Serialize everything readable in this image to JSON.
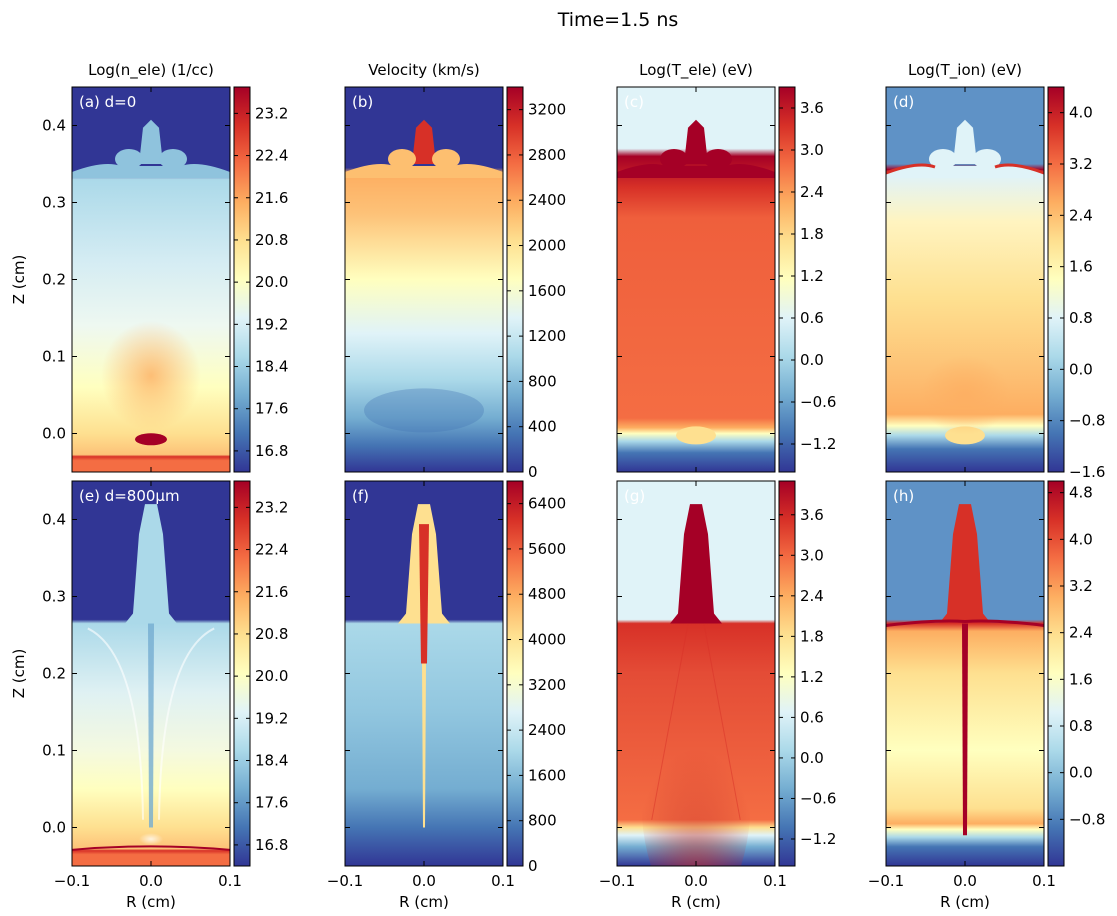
{
  "figure": {
    "suptitle": "Time=1.5 ns"
  },
  "colormap": [
    "#313695",
    "#4575b4",
    "#74add1",
    "#abd9e9",
    "#e0f3f8",
    "#ffffbf",
    "#fee090",
    "#fdae61",
    "#f46d43",
    "#d73027",
    "#a50026"
  ],
  "chart_data": [
    {
      "id": "a",
      "type": "heatmap",
      "title": "Log(n_ele) (1/cc)",
      "panel_label": "(a) d=0",
      "ylabel": "Z (cm)",
      "xlabel": "",
      "x_ticks": [],
      "y_ticks": [
        "0.0",
        "0.1",
        "0.2",
        "0.3",
        "0.4"
      ],
      "xlim": [
        -0.1,
        0.1
      ],
      "ylim": [
        -0.05,
        0.45
      ],
      "colorbar": {
        "ticks": [
          "16.8",
          "17.6",
          "18.4",
          "19.2",
          "20.0",
          "20.8",
          "21.6",
          "22.4",
          "23.2"
        ],
        "range": [
          16.4,
          23.7
        ]
      },
      "variant": "density0"
    },
    {
      "id": "b",
      "type": "heatmap",
      "title": "Velocity (km/s)",
      "panel_label": "(b)",
      "ylabel": "",
      "xlabel": "",
      "x_ticks": [],
      "y_ticks": [],
      "xlim": [
        -0.1,
        0.1
      ],
      "ylim": [
        -0.05,
        0.45
      ],
      "colorbar": {
        "ticks": [
          "0",
          "400",
          "800",
          "1200",
          "1600",
          "2000",
          "2400",
          "2800",
          "3200"
        ],
        "range": [
          0,
          3400
        ]
      },
      "variant": "velocity0"
    },
    {
      "id": "c",
      "type": "heatmap",
      "title": "Log(T_ele) (eV)",
      "panel_label": "(c)",
      "ylabel": "",
      "xlabel": "",
      "x_ticks": [],
      "y_ticks": [],
      "xlim": [
        -0.1,
        0.1
      ],
      "ylim": [
        -0.05,
        0.45
      ],
      "colorbar": {
        "ticks": [
          "-1.2",
          "-0.6",
          "0.0",
          "0.6",
          "1.2",
          "1.8",
          "2.4",
          "3.0",
          "3.6"
        ],
        "range": [
          -1.6,
          3.9
        ]
      },
      "variant": "tele0"
    },
    {
      "id": "d",
      "type": "heatmap",
      "title": "Log(T_ion) (eV)",
      "panel_label": "(d)",
      "ylabel": "",
      "xlabel": "",
      "x_ticks": [],
      "y_ticks": [],
      "xlim": [
        -0.1,
        0.1
      ],
      "ylim": [
        -0.05,
        0.45
      ],
      "colorbar": {
        "ticks": [
          "-1.6",
          "-0.8",
          "0.0",
          "0.8",
          "1.6",
          "2.4",
          "3.2",
          "4.0"
        ],
        "range": [
          -1.6,
          4.4
        ]
      },
      "variant": "tion0"
    },
    {
      "id": "e",
      "type": "heatmap",
      "title": "",
      "panel_label": "(e) d=800μm",
      "ylabel": "Z (cm)",
      "xlabel": "R (cm)",
      "x_ticks": [
        "−0.1",
        "0.0",
        "0.1"
      ],
      "y_ticks": [
        "0.0",
        "0.1",
        "0.2",
        "0.3",
        "0.4"
      ],
      "xlim": [
        -0.1,
        0.1
      ],
      "ylim": [
        -0.05,
        0.45
      ],
      "colorbar": {
        "ticks": [
          "16.8",
          "17.6",
          "18.4",
          "19.2",
          "20.0",
          "20.8",
          "21.6",
          "22.4",
          "23.2"
        ],
        "range": [
          16.4,
          23.7
        ]
      },
      "variant": "density1"
    },
    {
      "id": "f",
      "type": "heatmap",
      "title": "",
      "panel_label": "(f)",
      "ylabel": "",
      "xlabel": "R (cm)",
      "x_ticks": [
        "−0.1",
        "0.0",
        "0.1"
      ],
      "y_ticks": [],
      "xlim": [
        -0.1,
        0.1
      ],
      "ylim": [
        -0.05,
        0.45
      ],
      "colorbar": {
        "ticks": [
          "0",
          "800",
          "1600",
          "2400",
          "3200",
          "4000",
          "4800",
          "5600",
          "6400"
        ],
        "range": [
          0,
          6800
        ]
      },
      "variant": "velocity1"
    },
    {
      "id": "g",
      "type": "heatmap",
      "title": "",
      "panel_label": "(g)",
      "ylabel": "",
      "xlabel": "R (cm)",
      "x_ticks": [
        "−0.1",
        "0.0",
        "0.1"
      ],
      "y_ticks": [],
      "xlim": [
        -0.1,
        0.1
      ],
      "ylim": [
        -0.05,
        0.45
      ],
      "colorbar": {
        "ticks": [
          "-1.2",
          "-0.6",
          "0.0",
          "0.6",
          "1.2",
          "1.8",
          "2.4",
          "3.0",
          "3.6"
        ],
        "range": [
          -1.6,
          4.1
        ]
      },
      "variant": "tele1"
    },
    {
      "id": "h",
      "type": "heatmap",
      "title": "",
      "panel_label": "(h)",
      "ylabel": "",
      "xlabel": "R (cm)",
      "x_ticks": [
        "−0.1",
        "0.0",
        "0.1"
      ],
      "y_ticks": [],
      "xlim": [
        -0.1,
        0.1
      ],
      "ylim": [
        -0.05,
        0.45
      ],
      "colorbar": {
        "ticks": [
          "-0.8",
          "0.0",
          "0.8",
          "1.6",
          "2.4",
          "3.2",
          "4.0",
          "4.8"
        ],
        "range": [
          -1.6,
          5.0
        ]
      },
      "variant": "tion1"
    }
  ]
}
